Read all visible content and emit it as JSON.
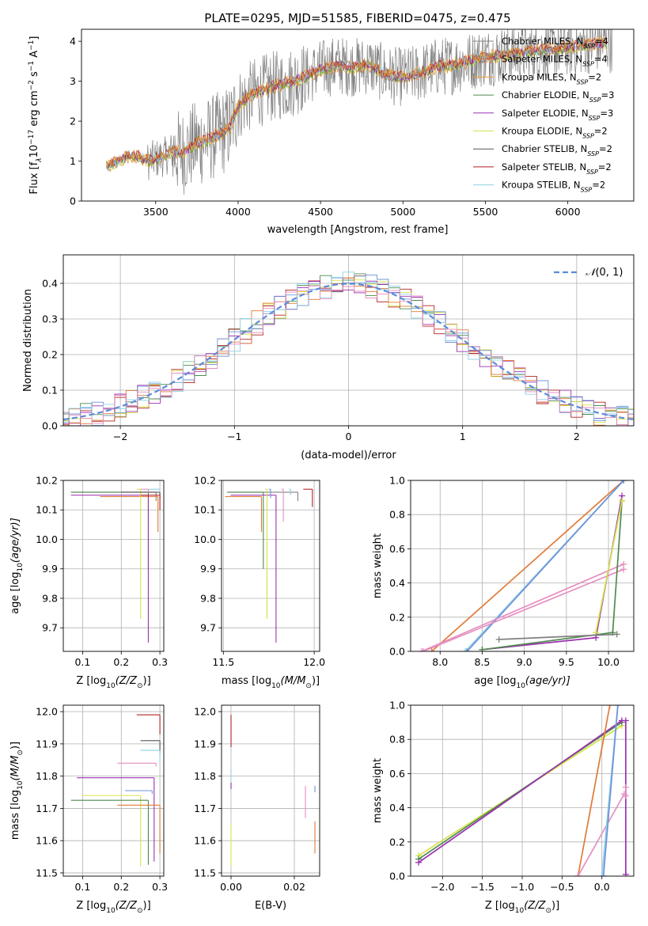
{
  "colors": {
    "Chabrier MILES": "#808080",
    "Salpeter MILES": "#e07b39",
    "Kroupa MILES": "#e89a2c",
    "Chabrier ELODIE": "#4f8a4f",
    "Salpeter ELODIE": "#9b30b0",
    "Kroupa ELODIE": "#d5e34a",
    "Chabrier STELIB": "#555555",
    "Salpeter STELIB": "#b22222",
    "Kroupa STELIB": "#8fd0e6",
    "pink": "#e58fc0",
    "blue": "#6f93d8",
    "normal": "#5b8bd8",
    "grid": "#b0b0b0"
  },
  "chart_data": [
    {
      "id": "spectrum",
      "type": "line",
      "title": "PLATE=0295, MJD=51585, FIBERID=0475, z=0.475",
      "xlabel": "wavelength [Angstrom, rest frame]",
      "ylabel_parts": [
        "Flux [f",
        "λ",
        "10",
        "−17",
        " erg cm",
        "−2",
        " s",
        "−1",
        " A",
        "−1",
        "]"
      ],
      "xlim": [
        3050,
        6400
      ],
      "ylim": [
        0,
        4.3
      ],
      "xticks": [
        3500,
        4000,
        4500,
        5000,
        5500,
        6000
      ],
      "yticks": [
        0,
        1,
        2,
        3,
        4
      ],
      "grid": false,
      "legend_position": "top-right",
      "legend": [
        {
          "label": "Chabrier MILES, N",
          "sub": "SSP",
          "tail": "=4"
        },
        {
          "label": "Salpeter MILES, N",
          "sub": "SSP",
          "tail": "=4"
        },
        {
          "label": "Kroupa MILES, N",
          "sub": "SSP",
          "tail": "=2"
        },
        {
          "label": "Chabrier ELODIE, N",
          "sub": "SSP",
          "tail": "=3"
        },
        {
          "label": "Salpeter ELODIE, N",
          "sub": "SSP",
          "tail": "=3"
        },
        {
          "label": "Kroupa ELODIE, N",
          "sub": "SSP",
          "tail": "=2"
        },
        {
          "label": "Chabrier STELIB, N",
          "sub": "SSP",
          "tail": "=2"
        },
        {
          "label": "Salpeter STELIB, N",
          "sub": "SSP",
          "tail": "=2"
        },
        {
          "label": "Kroupa STELIB, N",
          "sub": "SSP",
          "tail": "=2"
        }
      ],
      "model_continuum": {
        "x": [
          3200,
          3250,
          3300,
          3350,
          3400,
          3450,
          3500,
          3550,
          3600,
          3650,
          3700,
          3750,
          3800,
          3850,
          3900,
          3950,
          4000,
          4100,
          4200,
          4300,
          4400,
          4500,
          4600,
          4700,
          4800,
          4900,
          5000,
          5100,
          5200,
          5300,
          5400,
          5500,
          5600,
          5700,
          5800,
          5900,
          6000,
          6100,
          6200
        ],
        "y": [
          0.85,
          0.95,
          1.05,
          1.15,
          1.1,
          1.0,
          1.05,
          1.1,
          1.25,
          1.2,
          1.3,
          1.45,
          1.5,
          1.6,
          1.7,
          1.85,
          2.4,
          2.7,
          2.85,
          2.95,
          3.1,
          3.3,
          3.4,
          3.35,
          3.4,
          3.15,
          3.1,
          3.2,
          3.35,
          3.4,
          3.5,
          3.6,
          3.65,
          3.7,
          3.75,
          3.8,
          3.85,
          3.9,
          3.95
        ]
      },
      "observed_x_range": [
        3200,
        6270
      ]
    },
    {
      "id": "residuals",
      "type": "line",
      "xlabel": "(data-model)/error",
      "ylabel": "Normed distribution",
      "xlim": [
        -2.5,
        2.5
      ],
      "ylim": [
        0,
        0.48
      ],
      "xticks": [
        -2,
        -1,
        0,
        1,
        2
      ],
      "yticks": [
        0.0,
        0.1,
        0.2,
        0.3,
        0.4
      ],
      "grid": true,
      "legend_position": "top-right",
      "normal_label": "N(0, 1)",
      "normal_label_parts": [
        "𝒩",
        "(0, 1)"
      ],
      "bin_width": 0.1
    },
    {
      "id": "age-vs-Z",
      "type": "scatter",
      "xlabel_parts": [
        "Z [log",
        "10",
        "(Z/Z",
        "⊙",
        ")]"
      ],
      "ylabel_parts": [
        "age  [log",
        "10",
        "(age/yr)]"
      ],
      "xlim": [
        0.05,
        0.31
      ],
      "ylim": [
        9.62,
        10.2
      ],
      "xticks": [
        0.1,
        0.2,
        0.3
      ],
      "yticks": [
        9.7,
        9.8,
        9.9,
        10.0,
        10.1,
        10.2
      ],
      "grid": true,
      "points": [
        {
          "series": "Chabrier MILES",
          "x": 0.29,
          "y": 10.16,
          "xerr": 0.22,
          "yerr": 0.03
        },
        {
          "series": "Salpeter MILES",
          "x": 0.295,
          "y": 10.145,
          "xerr": 0.15,
          "yerr": 0.12
        },
        {
          "series": "Chabrier ELODIE",
          "x": 0.27,
          "y": 10.16,
          "xerr": 0.2,
          "yerr": 0.26
        },
        {
          "series": "Salpeter ELODIE",
          "x": 0.27,
          "y": 10.15,
          "xerr": 0.2,
          "yerr": 0.5
        },
        {
          "series": "Kroupa ELODIE",
          "x": 0.25,
          "y": 10.17,
          "xerr": 0.01,
          "yerr": 0.44
        },
        {
          "series": "Chabrier STELIB",
          "x": 0.3,
          "y": 10.16,
          "xerr": 0.1,
          "yerr": 0.02
        },
        {
          "series": "Salpeter STELIB",
          "x": 0.3,
          "y": 10.15,
          "xerr": 0.05,
          "yerr": 0.05
        },
        {
          "series": "Kroupa STELIB",
          "x": 0.3,
          "y": 10.17,
          "xerr": 0.03,
          "yerr": 0.01
        },
        {
          "series": "pink",
          "x": 0.27,
          "y": 10.17,
          "xerr": 0.02,
          "yerr": 0.01
        }
      ]
    },
    {
      "id": "age-vs-mass",
      "type": "scatter",
      "xlabel_parts": [
        "mass [log",
        "10",
        "(M/M",
        "⊙",
        ")]"
      ],
      "xlim": [
        11.49,
        12.03
      ],
      "ylim": [
        9.62,
        10.2
      ],
      "xticks": [
        11.5,
        12.0
      ],
      "yticks": [
        9.7,
        9.8,
        9.9,
        10.0,
        10.1,
        10.2
      ],
      "grid": true,
      "points": [
        {
          "series": "Chabrier MILES",
          "x": 11.91,
          "y": 10.16,
          "xerr": 0.38,
          "yerr": 0.03
        },
        {
          "series": "Salpeter MILES",
          "x": 11.71,
          "y": 10.145,
          "xerr": 0.2,
          "yerr": 0.12
        },
        {
          "series": "Chabrier ELODIE",
          "x": 11.72,
          "y": 10.16,
          "xerr": 0.2,
          "yerr": 0.26
        },
        {
          "series": "Salpeter ELODIE",
          "x": 11.79,
          "y": 10.15,
          "xerr": 0.25,
          "yerr": 0.5
        },
        {
          "series": "Kroupa ELODIE",
          "x": 11.74,
          "y": 10.17,
          "xerr": 0.01,
          "yerr": 0.44
        },
        {
          "series": "Salpeter STELIB",
          "x": 11.99,
          "y": 10.17,
          "xerr": 0.05,
          "yerr": 0.06
        },
        {
          "series": "Kroupa STELIB",
          "x": 11.87,
          "y": 10.17,
          "xerr": 0.01,
          "yerr": 0.02
        },
        {
          "series": "pink",
          "x": 11.83,
          "y": 10.17,
          "xerr": 0.01,
          "yerr": 0.11
        },
        {
          "series": "blue",
          "x": 11.76,
          "y": 10.17,
          "xerr": 0.01,
          "yerr": 0.03
        }
      ]
    },
    {
      "id": "massweight-vs-age",
      "type": "line",
      "xlabel_parts": [
        "age  [log",
        "10",
        "(age/yr)]"
      ],
      "ylabel": "mass weight",
      "xlim": [
        7.65,
        10.3
      ],
      "ylim": [
        0,
        1.0
      ],
      "xticks": [
        8.0,
        8.5,
        9.0,
        9.5,
        10.0
      ],
      "yticks": [
        0.0,
        0.2,
        0.4,
        0.6,
        0.8,
        1.0
      ],
      "grid": true,
      "series": [
        {
          "name": "Salpeter MILES",
          "x": [
            7.9,
            10.18
          ],
          "y": [
            0.0,
            1.0
          ]
        },
        {
          "name": "Kroupa STELIB",
          "x": [
            8.3,
            10.18
          ],
          "y": [
            0.0,
            1.0
          ]
        },
        {
          "name": "blue",
          "x": [
            8.32,
            10.18
          ],
          "y": [
            0.0,
            1.0
          ]
        },
        {
          "name": "pink",
          "x": [
            7.8,
            10.18
          ],
          "y": [
            0.0,
            0.48
          ]
        },
        {
          "name": "pink",
          "x": [
            7.78,
            10.18
          ],
          "y": [
            0.0,
            0.51
          ]
        },
        {
          "name": "Salpeter ELODIE",
          "x": [
            8.5,
            9.85,
            10.16
          ],
          "y": [
            0.01,
            0.08,
            0.91
          ]
        },
        {
          "name": "Chabrier ELODIE",
          "x": [
            8.5,
            10.05,
            10.16
          ],
          "y": [
            0.01,
            0.11,
            0.88
          ]
        },
        {
          "name": "Kroupa ELODIE",
          "x": [
            9.85,
            10.16
          ],
          "y": [
            0.11,
            0.88
          ]
        },
        {
          "name": "Chabrier MILES",
          "x": [
            8.7,
            10.1
          ],
          "y": [
            0.07,
            0.1
          ]
        }
      ]
    },
    {
      "id": "mass-vs-Z",
      "type": "scatter",
      "xlabel_parts": [
        "Z [log",
        "10",
        "(Z/Z",
        "⊙",
        ")]"
      ],
      "ylabel_parts": [
        "mass [log",
        "10",
        "(M/M",
        "⊙",
        ")]"
      ],
      "xlim": [
        0.05,
        0.31
      ],
      "ylim": [
        11.49,
        12.02
      ],
      "xticks": [
        0.1,
        0.2,
        0.3
      ],
      "yticks": [
        11.5,
        11.6,
        11.7,
        11.8,
        11.9,
        12.0
      ],
      "grid": true,
      "points": [
        {
          "series": "Salpeter STELIB",
          "x": 0.3,
          "y": 11.99,
          "xerr": 0.06,
          "yerr": 0.06
        },
        {
          "series": "Chabrier STELIB",
          "x": 0.3,
          "y": 11.91,
          "xerr": 0.05,
          "yerr": 0.04
        },
        {
          "series": "Kroupa STELIB",
          "x": 0.3,
          "y": 11.88,
          "xerr": 0.05,
          "yerr": 0.04
        },
        {
          "series": "pink",
          "x": 0.29,
          "y": 11.84,
          "xerr": 0.1,
          "yerr": 0.01
        },
        {
          "series": "Salpeter ELODIE",
          "x": 0.285,
          "y": 11.795,
          "xerr": 0.2,
          "yerr": 0.26
        },
        {
          "series": "blue",
          "x": 0.28,
          "y": 11.755,
          "xerr": 0.07,
          "yerr": 0.01
        },
        {
          "series": "Kroupa ELODIE",
          "x": 0.25,
          "y": 11.74,
          "xerr": 0.15,
          "yerr": 0.22
        },
        {
          "series": "Chabrier ELODIE",
          "x": 0.27,
          "y": 11.725,
          "xerr": 0.2,
          "yerr": 0.2
        },
        {
          "series": "Salpeter MILES",
          "x": 0.3,
          "y": 11.71,
          "xerr": 0.11,
          "yerr": 0.15
        }
      ]
    },
    {
      "id": "mass-vs-EBV",
      "type": "scatter",
      "xlabel": "E(B-V)",
      "xlim": [
        -0.003,
        0.028
      ],
      "ylim": [
        11.49,
        12.02
      ],
      "xticks": [
        0.0,
        0.02
      ],
      "yticks": [
        11.5,
        11.6,
        11.7,
        11.8,
        11.9,
        12.0
      ],
      "grid": true,
      "points": [
        {
          "series": "Salpeter STELIB",
          "x": 0.0,
          "y": 11.99,
          "xerr": 0,
          "yerr": 0.1
        },
        {
          "series": "Kroupa STELIB",
          "x": 0.0,
          "y": 11.82,
          "xerr": 0,
          "yerr": 0.06
        },
        {
          "series": "Kroupa ELODIE",
          "x": 0.0,
          "y": 11.65,
          "xerr": 0,
          "yerr": 0.13
        },
        {
          "series": "Salpeter ELODIE",
          "x": 0.0,
          "y": 11.78,
          "xerr": 0,
          "yerr": 0.02
        },
        {
          "series": "pink",
          "x": 0.0235,
          "y": 11.77,
          "xerr": 0,
          "yerr": 0.1
        },
        {
          "series": "Salpeter MILES",
          "x": 0.0265,
          "y": 11.66,
          "xerr": 0,
          "yerr": 0.1
        },
        {
          "series": "blue",
          "x": 0.0265,
          "y": 11.77,
          "xerr": 0,
          "yerr": 0.02
        }
      ]
    },
    {
      "id": "massweight-vs-Z",
      "type": "line",
      "xlabel_parts": [
        "Z [log",
        "10",
        "(Z/Z",
        "⊙",
        ")]"
      ],
      "ylabel": "mass weight",
      "xlim": [
        -2.4,
        0.4
      ],
      "ylim": [
        0,
        1.0
      ],
      "xticks": [
        -2.0,
        -1.5,
        -1.0,
        -0.5,
        0.0
      ],
      "yticks": [
        0.0,
        0.2,
        0.4,
        0.6,
        0.8,
        1.0
      ],
      "grid": true,
      "series": [
        {
          "name": "Kroupa ELODIE",
          "x": [
            -2.3,
            0.25
          ],
          "y": [
            0.12,
            0.88
          ]
        },
        {
          "name": "Chabrier ELODIE",
          "x": [
            -2.3,
            0.25
          ],
          "y": [
            0.1,
            0.9
          ]
        },
        {
          "name": "Salpeter ELODIE",
          "x": [
            -2.3,
            0.25
          ],
          "y": [
            0.08,
            0.91
          ]
        },
        {
          "name": "Salpeter MILES",
          "x": [
            -0.3,
            0.1
          ],
          "y": [
            0.0,
            1.0
          ]
        },
        {
          "name": "pink",
          "x": [
            -0.3,
            0.28
          ],
          "y": [
            0.0,
            0.48
          ]
        },
        {
          "name": "Kroupa STELIB",
          "x": [
            0.0,
            0.2
          ],
          "y": [
            0.0,
            1.0
          ]
        },
        {
          "name": "blue",
          "x": [
            0.02,
            0.2
          ],
          "y": [
            0.0,
            1.0
          ]
        },
        {
          "name": "Salpeter ELODIE",
          "x": [
            0.3,
            0.3
          ],
          "y": [
            0.01,
            0.91
          ]
        },
        {
          "name": "pink",
          "x": [
            0.3,
            0.3
          ],
          "y": [
            0.47,
            0.52
          ]
        }
      ]
    }
  ]
}
